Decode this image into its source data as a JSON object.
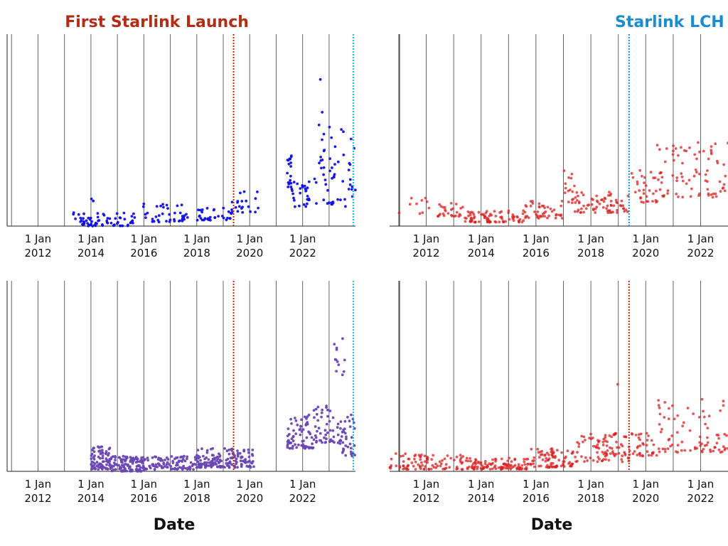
{
  "chart_data": [
    {
      "type": "scatter",
      "panel": "top-left",
      "xlim": [
        "2010-11-01",
        "2023-12-31"
      ],
      "x_ticks": [
        "1 Jan 2012",
        "1 Jan 2014",
        "1 Jan 2016",
        "1 Jan 2018",
        "1 Jan 2020",
        "1 Jan 2022"
      ],
      "xlabel": "",
      "color": "#1010e8",
      "annotations": [
        {
          "label": "First Starlink Launch",
          "date": "2019-05-24",
          "color": "#b22d14"
        },
        {
          "label": "",
          "date": "2023-12-01",
          "color": "#29b6d6"
        }
      ],
      "clusters": [
        {
          "start": "2013-05-01",
          "end": "2015-09-01",
          "n": 70,
          "lo": 0.0,
          "hi": 0.07
        },
        {
          "start": "2014-01-01",
          "end": "2014-03-01",
          "n": 2,
          "lo": 0.13,
          "hi": 0.16
        },
        {
          "start": "2015-12-01",
          "end": "2017-09-01",
          "n": 40,
          "lo": 0.02,
          "hi": 0.12
        },
        {
          "start": "2018-01-01",
          "end": "2019-05-01",
          "n": 35,
          "lo": 0.03,
          "hi": 0.1
        },
        {
          "start": "2019-05-01",
          "end": "2020-05-01",
          "n": 20,
          "lo": 0.07,
          "hi": 0.18
        },
        {
          "start": "2021-06-01",
          "end": "2021-08-01",
          "n": 18,
          "lo": 0.2,
          "hi": 0.38
        },
        {
          "start": "2021-08-01",
          "end": "2022-08-01",
          "n": 30,
          "lo": 0.1,
          "hi": 0.25
        },
        {
          "start": "2022-08-01",
          "end": "2022-11-01",
          "n": 12,
          "lo": 0.3,
          "hi": 0.8
        },
        {
          "start": "2022-10-01",
          "end": "2023-12-31",
          "n": 45,
          "lo": 0.1,
          "hi": 0.52
        }
      ]
    },
    {
      "type": "scatter",
      "panel": "top-right",
      "xlim": [
        "2010-09-01",
        "2022-12-31"
      ],
      "x_ticks": [
        "1 Jan 2012",
        "1 Jan 2014",
        "1 Jan 2016",
        "1 Jan 2018",
        "1 Jan 2020",
        "1 Jan 2022"
      ],
      "xlabel": "",
      "color": "#d92020",
      "annotations": [
        {
          "label": "Starlink LCH W",
          "date": "2019-05-24",
          "color": "#1a8ccf"
        }
      ],
      "clusters": [
        {
          "start": "2010-11-01",
          "end": "2012-09-01",
          "n": 12,
          "lo": 0.05,
          "hi": 0.18
        },
        {
          "start": "2012-06-01",
          "end": "2013-06-01",
          "n": 25,
          "lo": 0.05,
          "hi": 0.12
        },
        {
          "start": "2013-06-01",
          "end": "2015-08-01",
          "n": 80,
          "lo": 0.02,
          "hi": 0.08
        },
        {
          "start": "2015-08-01",
          "end": "2017-01-01",
          "n": 45,
          "lo": 0.04,
          "hi": 0.13
        },
        {
          "start": "2017-01-01",
          "end": "2017-06-01",
          "n": 15,
          "lo": 0.12,
          "hi": 0.3
        },
        {
          "start": "2017-06-01",
          "end": "2019-06-01",
          "n": 70,
          "lo": 0.07,
          "hi": 0.18
        },
        {
          "start": "2019-06-01",
          "end": "2020-06-01",
          "n": 30,
          "lo": 0.12,
          "hi": 0.3
        },
        {
          "start": "2020-06-01",
          "end": "2022-12-31",
          "n": 80,
          "lo": 0.15,
          "hi": 0.44
        }
      ]
    },
    {
      "type": "scatter",
      "panel": "bottom-left",
      "xlim": [
        "2010-11-01",
        "2023-12-31"
      ],
      "x_ticks": [
        "1 Jan 2012",
        "1 Jan 2014",
        "1 Jan 2016",
        "1 Jan 2018",
        "1 Jan 2020",
        "1 Jan 2022"
      ],
      "xlabel": "Date",
      "color": "#6a46b4",
      "annotations": [
        {
          "label": "",
          "date": "2019-05-24",
          "color": "#b22d14"
        },
        {
          "label": "",
          "date": "2023-12-01",
          "color": "#29b6d6"
        }
      ],
      "clusters": [
        {
          "start": "2014-01-01",
          "end": "2014-10-01",
          "n": 80,
          "lo": 0.01,
          "hi": 0.13
        },
        {
          "start": "2014-10-01",
          "end": "2016-01-01",
          "n": 110,
          "lo": 0.0,
          "hi": 0.08
        },
        {
          "start": "2016-01-01",
          "end": "2017-12-01",
          "n": 90,
          "lo": 0.01,
          "hi": 0.08
        },
        {
          "start": "2017-12-01",
          "end": "2020-03-01",
          "n": 160,
          "lo": 0.02,
          "hi": 0.12
        },
        {
          "start": "2021-06-01",
          "end": "2022-06-01",
          "n": 70,
          "lo": 0.12,
          "hi": 0.3
        },
        {
          "start": "2022-06-01",
          "end": "2023-06-01",
          "n": 50,
          "lo": 0.15,
          "hi": 0.35
        },
        {
          "start": "2023-03-01",
          "end": "2023-09-01",
          "n": 12,
          "lo": 0.5,
          "hi": 0.7
        },
        {
          "start": "2023-06-01",
          "end": "2023-12-31",
          "n": 40,
          "lo": 0.08,
          "hi": 0.3
        }
      ]
    },
    {
      "type": "scatter",
      "panel": "bottom-right",
      "xlim": [
        "2010-09-01",
        "2022-12-31"
      ],
      "x_ticks": [
        "1 Jan 2012",
        "1 Jan 2014",
        "1 Jan 2016",
        "1 Jan 2018",
        "1 Jan 2020",
        "1 Jan 2022"
      ],
      "xlabel": "Date",
      "color": "#d92020",
      "annotations": [
        {
          "label": "",
          "date": "2019-05-24",
          "color": "#b22d14"
        }
      ],
      "clusters": [
        {
          "start": "2010-09-01",
          "end": "2013-06-01",
          "n": 90,
          "lo": 0.01,
          "hi": 0.1
        },
        {
          "start": "2013-06-01",
          "end": "2015-10-01",
          "n": 110,
          "lo": 0.01,
          "hi": 0.07
        },
        {
          "start": "2015-10-01",
          "end": "2017-06-01",
          "n": 80,
          "lo": 0.02,
          "hi": 0.12
        },
        {
          "start": "2017-06-01",
          "end": "2019-06-01",
          "n": 90,
          "lo": 0.05,
          "hi": 0.2
        },
        {
          "start": "2019-06-01",
          "end": "2020-06-01",
          "n": 35,
          "lo": 0.08,
          "hi": 0.2
        },
        {
          "start": "2020-06-01",
          "end": "2022-12-31",
          "n": 80,
          "lo": 0.1,
          "hi": 0.38
        },
        {
          "start": "2018-11-01",
          "end": "2019-01-01",
          "n": 1,
          "lo": 0.44,
          "hi": 0.46
        }
      ]
    }
  ]
}
